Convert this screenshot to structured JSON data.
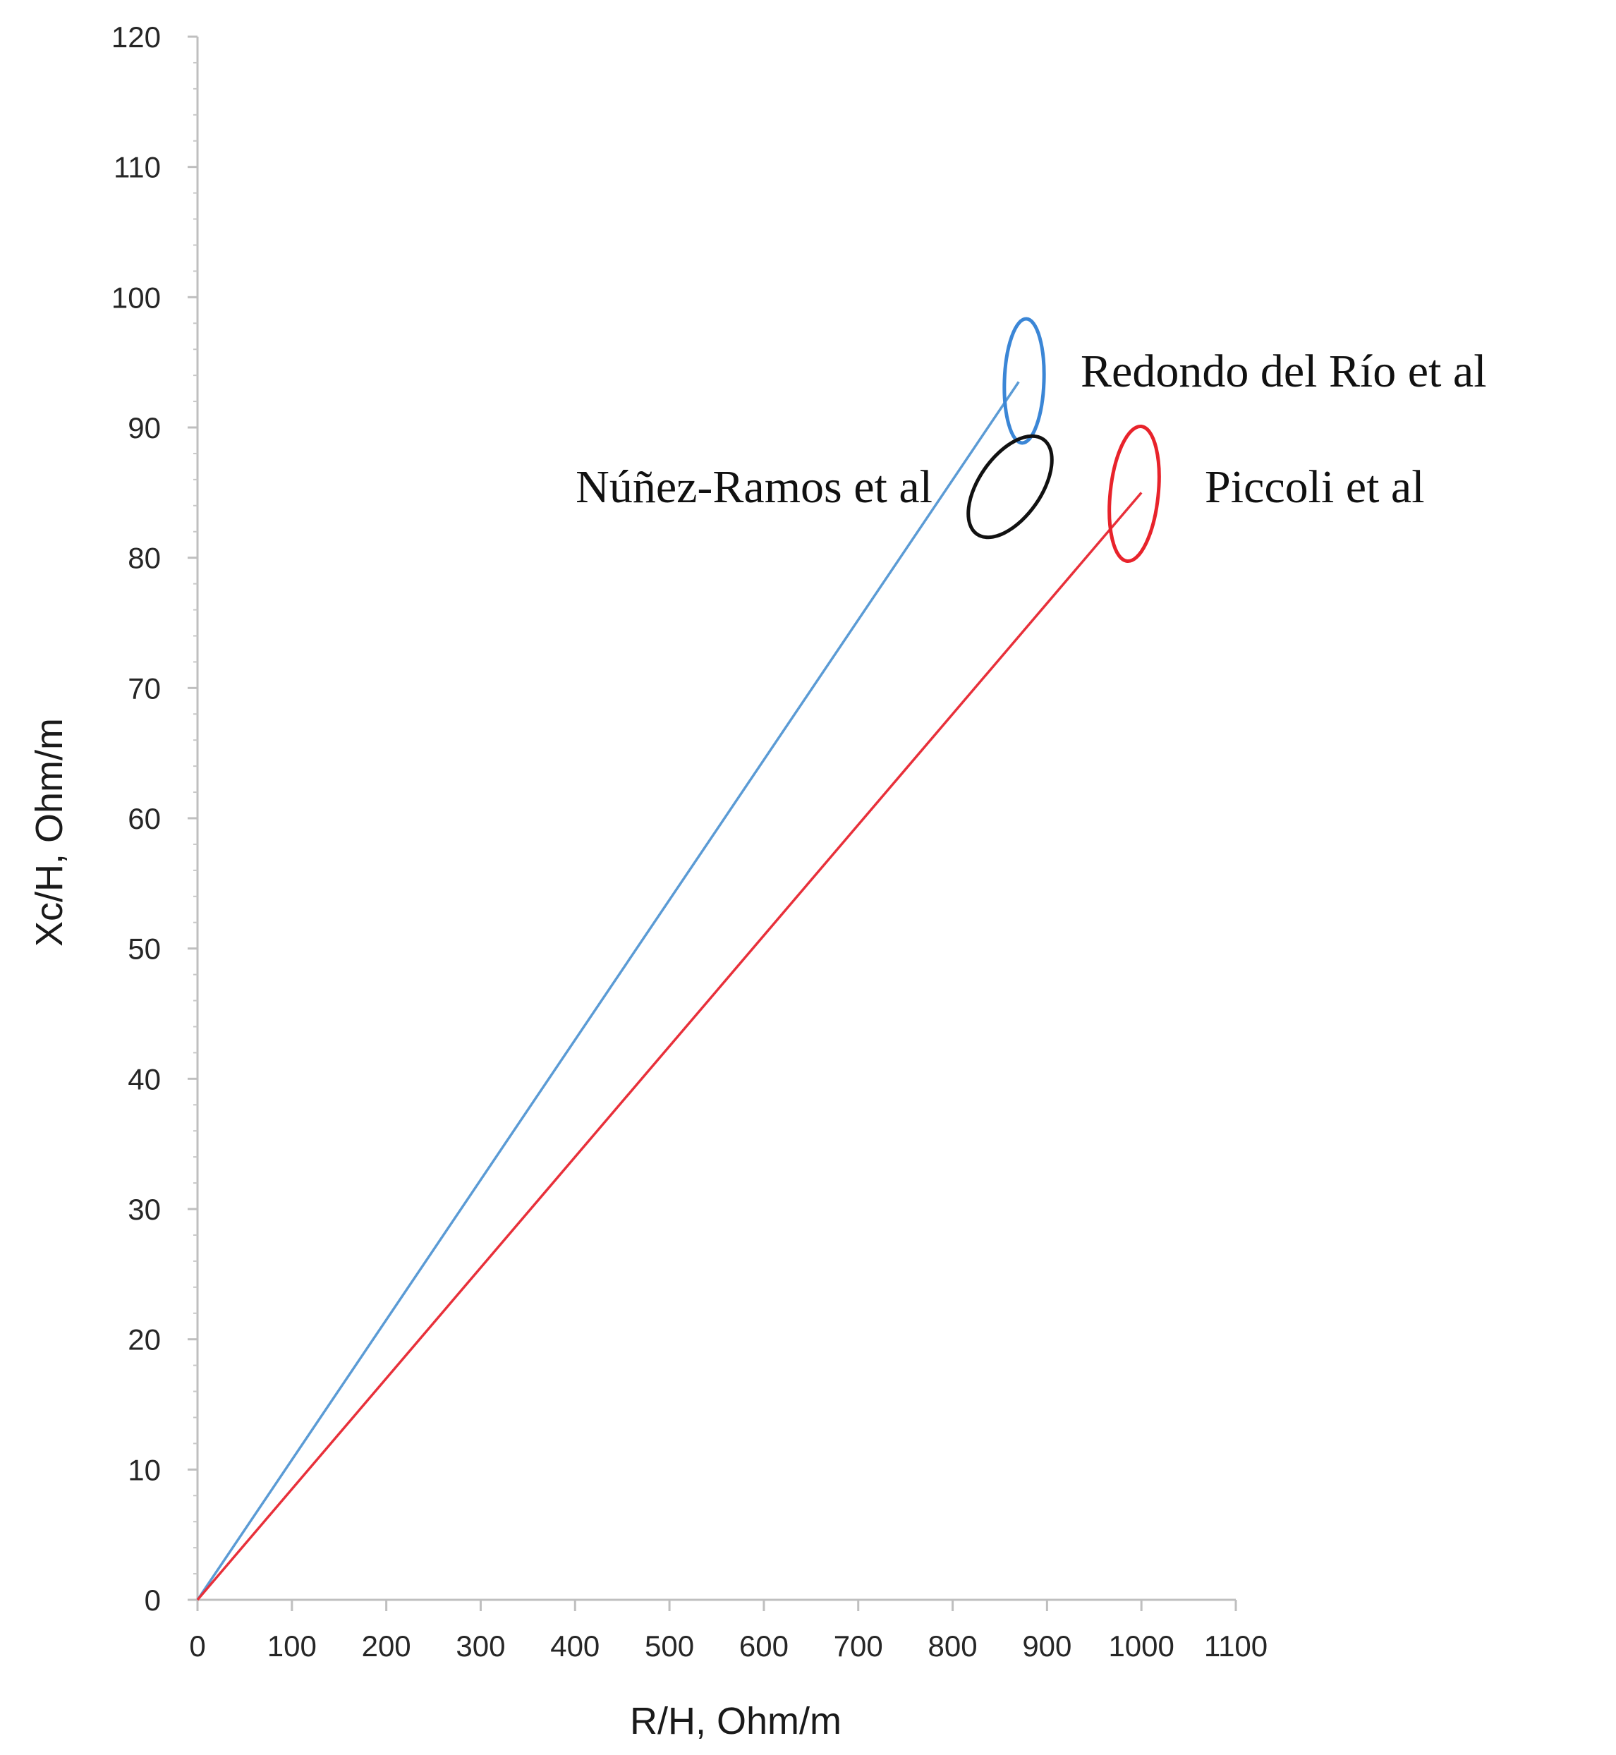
{
  "chart_data": {
    "type": "line",
    "title": "",
    "xlabel": "R/H, Ohm/m",
    "ylabel": "Xc/H, Ohm/m",
    "xlim": [
      0,
      1100
    ],
    "ylim": [
      0,
      120
    ],
    "x_ticks": [
      "0",
      "100",
      "200",
      "300",
      "400",
      "500",
      "600",
      "700",
      "800",
      "900",
      "1000",
      "1100"
    ],
    "y_ticks": [
      "0",
      "10",
      "20",
      "30",
      "40",
      "50",
      "60",
      "70",
      "80",
      "90",
      "100",
      "110",
      "120"
    ],
    "grid": false,
    "series": [
      {
        "color": "#5b9bd5",
        "x": [
          0,
          870
        ],
        "y": [
          0,
          93.5
        ]
      },
      {
        "color": "#e8303a",
        "x": [
          0,
          1000
        ],
        "y": [
          0,
          85
        ]
      }
    ],
    "annotations": [
      {
        "text": "Redondo del Río et al",
        "ellipse_color": "#3b86d6",
        "cx": 880,
        "cy": 93
      },
      {
        "text": "Núñez-Ramos et al",
        "ellipse_color": "#111111",
        "cx": 870,
        "cy": 86
      },
      {
        "text": "Piccoli et al",
        "ellipse_color": "#e8232b",
        "cx": 1000,
        "cy": 85
      }
    ]
  }
}
